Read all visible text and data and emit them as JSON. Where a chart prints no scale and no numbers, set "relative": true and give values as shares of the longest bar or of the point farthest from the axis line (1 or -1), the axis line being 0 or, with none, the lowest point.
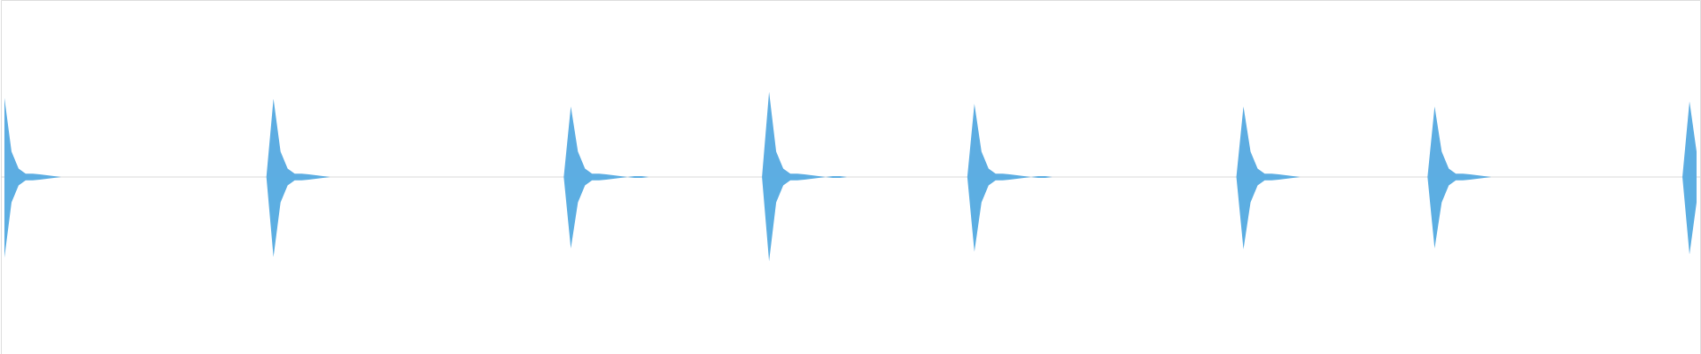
{
  "chart_data": {
    "type": "area",
    "relative": true,
    "categories": [
      null,
      null,
      null,
      null,
      null,
      null,
      null,
      null,
      null,
      null,
      null,
      null,
      null,
      null,
      null,
      null,
      null,
      null,
      null,
      null,
      null,
      null,
      null,
      null,
      null,
      null,
      null,
      null,
      null,
      null,
      null,
      null,
      null,
      null,
      null,
      null,
      null,
      null,
      null,
      null,
      null,
      null,
      null,
      null,
      null,
      null,
      null,
      null,
      null,
      null,
      null,
      null,
      null,
      null,
      null,
      null,
      null,
      null,
      null,
      null,
      null,
      null,
      null,
      null,
      null,
      null,
      null,
      null,
      null,
      null,
      null,
      null,
      null,
      null,
      null,
      null,
      null,
      null,
      null,
      null,
      null,
      null,
      null,
      null,
      null,
      null,
      null,
      null,
      null,
      null,
      null,
      null,
      null,
      null,
      null,
      null,
      null,
      null,
      null,
      null,
      null,
      null,
      null,
      null,
      null,
      null,
      null,
      null,
      null,
      null,
      null,
      null,
      null,
      null,
      null,
      null,
      null,
      null,
      null,
      null,
      null,
      null,
      null,
      null,
      null,
      null,
      null,
      null,
      null,
      null,
      null,
      null,
      null,
      null,
      null,
      null,
      null,
      null,
      null,
      null,
      null,
      null,
      null,
      null,
      null,
      null,
      null,
      null,
      null,
      null,
      null,
      null,
      null,
      null,
      null,
      null,
      null,
      null,
      null,
      null,
      null,
      null,
      null,
      null,
      null,
      null,
      null,
      null,
      null,
      null,
      null,
      null,
      null,
      null,
      null,
      null,
      null,
      null,
      null,
      null,
      null,
      null,
      null,
      null,
      null,
      null,
      null,
      null,
      null,
      null,
      null,
      null,
      null,
      null,
      null,
      null,
      null,
      null,
      null,
      null,
      null,
      null,
      null,
      null,
      null,
      null,
      null,
      null,
      null,
      null,
      null,
      null,
      null,
      null,
      null,
      null,
      null,
      null,
      null,
      null,
      null,
      null,
      null,
      null,
      null,
      null,
      null,
      null,
      null,
      null,
      null,
      null,
      null,
      null,
      null,
      null,
      null,
      null,
      null,
      null
    ],
    "series": [
      {
        "color": "#5dade2",
        "values": [
          0.93,
          0.3,
          0.1,
          0.04,
          0.04,
          0.03,
          0.02,
          0.01,
          0,
          0,
          0,
          0,
          0,
          0,
          0,
          0,
          0,
          0,
          0,
          0,
          0,
          0,
          0,
          0,
          0,
          0,
          0,
          0,
          0,
          0,
          0,
          0,
          0,
          0,
          0,
          0,
          0,
          0,
          0.92,
          0.3,
          0.1,
          0.04,
          0.04,
          0.03,
          0.02,
          0.01,
          0,
          0,
          0,
          0,
          0,
          0,
          0,
          0,
          0,
          0,
          0,
          0,
          0,
          0,
          0,
          0,
          0,
          0,
          0,
          0,
          0,
          0,
          0,
          0,
          0,
          0,
          0,
          0,
          0,
          0,
          0,
          0,
          0,
          0,
          0.83,
          0.3,
          0.1,
          0.04,
          0.04,
          0.03,
          0.02,
          0.01,
          0,
          0.01,
          0.01,
          0,
          0,
          0,
          0,
          0,
          0,
          0,
          0,
          0,
          0,
          0,
          0,
          0,
          0,
          0,
          0,
          0,
          1,
          0.3,
          0.1,
          0.04,
          0.04,
          0.03,
          0.02,
          0.01,
          0,
          0.01,
          0.01,
          0,
          0,
          0,
          0,
          0,
          0,
          0,
          0,
          0,
          0,
          0,
          0,
          0,
          0,
          0,
          0,
          0,
          0,
          0.86,
          0.3,
          0.1,
          0.04,
          0.04,
          0.03,
          0.02,
          0.01,
          0,
          0.01,
          0.01,
          0,
          0,
          0,
          0,
          0,
          0,
          0,
          0,
          0,
          0,
          0,
          0,
          0,
          0,
          0,
          0,
          0,
          0,
          0,
          0,
          0,
          0,
          0,
          0,
          0,
          0,
          0,
          0.83,
          0.3,
          0.1,
          0.04,
          0.04,
          0.03,
          0.02,
          0.01,
          0,
          0,
          0,
          0,
          0,
          0,
          0,
          0,
          0,
          0,
          0,
          0,
          0,
          0,
          0,
          0,
          0,
          0,
          0,
          0.83,
          0.3,
          0.1,
          0.04,
          0.04,
          0.03,
          0.02,
          0.01,
          0,
          0,
          0,
          0,
          0,
          0,
          0,
          0,
          0,
          0,
          0,
          0,
          0,
          0,
          0,
          0,
          0,
          0,
          0,
          0,
          0,
          0,
          0,
          0,
          0,
          0,
          0,
          0,
          0.89,
          0.3
        ]
      },
      {
        "color": "#5caee2",
        "values": [
          -0.95,
          -0.3,
          -0.1,
          -0.04,
          -0.04,
          -0.03,
          -0.02,
          -0.01,
          0,
          0,
          0,
          0,
          0,
          0,
          0,
          0,
          0,
          0,
          0,
          0,
          0,
          0,
          0,
          0,
          0,
          0,
          0,
          0,
          0,
          0,
          0,
          0,
          0,
          0,
          0,
          0,
          0,
          0,
          -0.94,
          -0.3,
          -0.1,
          -0.04,
          -0.04,
          -0.03,
          -0.02,
          -0.01,
          0,
          0,
          0,
          0,
          0,
          0,
          0,
          0,
          0,
          0,
          0,
          0,
          0,
          0,
          0,
          0,
          0,
          0,
          0,
          0,
          0,
          0,
          0,
          0,
          0,
          0,
          0,
          0,
          0,
          0,
          0,
          0,
          0,
          0,
          -0.84,
          -0.3,
          -0.1,
          -0.04,
          -0.04,
          -0.03,
          -0.02,
          -0.01,
          0,
          -0.01,
          -0.01,
          0,
          0,
          0,
          0,
          0,
          0,
          0,
          0,
          0,
          0,
          0,
          0,
          0,
          0,
          0,
          0,
          0,
          -0.99,
          -0.3,
          -0.1,
          -0.04,
          -0.04,
          -0.03,
          -0.02,
          -0.01,
          0,
          -0.01,
          -0.01,
          0,
          0,
          0,
          0,
          0,
          0,
          0,
          0,
          0,
          0,
          0,
          0,
          0,
          0,
          0,
          0,
          0,
          0,
          -0.88,
          -0.3,
          -0.1,
          -0.04,
          -0.04,
          -0.03,
          -0.02,
          -0.01,
          0,
          -0.01,
          -0.01,
          0,
          0,
          0,
          0,
          0,
          0,
          0,
          0,
          0,
          0,
          0,
          0,
          0,
          0,
          0,
          0,
          0,
          0,
          0,
          0,
          0,
          0,
          0,
          0,
          0,
          0,
          0,
          -0.85,
          -0.3,
          -0.1,
          -0.04,
          -0.04,
          -0.03,
          -0.02,
          -0.01,
          0,
          0,
          0,
          0,
          0,
          0,
          0,
          0,
          0,
          0,
          0,
          0,
          0,
          0,
          0,
          0,
          0,
          0,
          0,
          -0.84,
          -0.3,
          -0.1,
          -0.04,
          -0.04,
          -0.03,
          -0.02,
          -0.01,
          0,
          0,
          0,
          0,
          0,
          0,
          0,
          0,
          0,
          0,
          0,
          0,
          0,
          0,
          0,
          0,
          0,
          0,
          0,
          0,
          0,
          0,
          0,
          0,
          0,
          0,
          0,
          0,
          -0.91,
          -0.3
        ]
      }
    ]
  }
}
